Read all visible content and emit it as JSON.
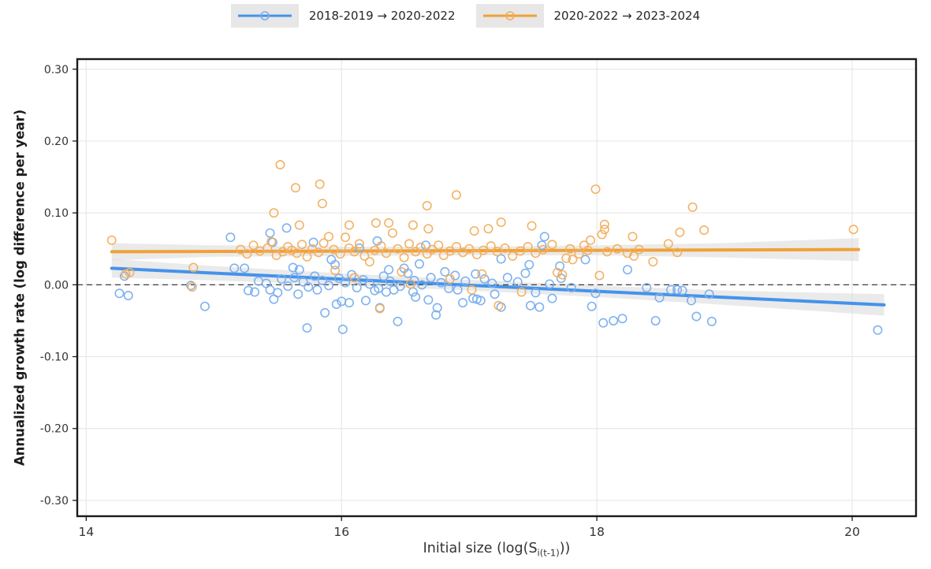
{
  "legend": {
    "items": [
      {
        "label": "2018-2019 → 2020-2022"
      },
      {
        "label": "2020-2022 → 2023-2024"
      }
    ]
  },
  "axes": {
    "y_label": "Annualized growth rate (log difference per year)",
    "x_label_pre": "Initial size (log(S",
    "x_label_sub": "i(t-1)",
    "x_label_post": "))"
  },
  "chart_data": {
    "type": "scatter",
    "title": "",
    "xlabel": "Initial size (log(S_i(t-1)))",
    "ylabel": "Annualized growth rate (log difference per year)",
    "xlim": [
      13.93,
      20.5
    ],
    "ylim": [
      -0.322,
      0.314
    ],
    "grid": true,
    "legend_position": "top-center",
    "x_ticks": {
      "values": [
        14,
        16,
        18,
        20
      ],
      "labels": [
        "14",
        "16",
        "18",
        "20"
      ]
    },
    "y_ticks": {
      "values": [
        0.3,
        0.2,
        0.1,
        0.0,
        -0.1,
        -0.2,
        -0.3
      ],
      "labels": [
        "0.30",
        "0.20",
        "0.10",
        "0.00",
        "-0.10",
        "-0.20",
        "-0.30"
      ]
    },
    "zero_line": {
      "y": 0,
      "style": "dashed",
      "color": "#3c3c3c"
    },
    "colors": {
      "ribbon": "#dcdcdc",
      "grid": "#e8e8e8",
      "spine": "#1b1b1b",
      "tick_text": "#333333"
    },
    "series": [
      {
        "name": "2018-2019 → 2020-2022",
        "line_color": "#4493EA",
        "marker_color": "#78AEEF",
        "trend": [
          [
            14.2,
            0.023
          ],
          [
            20.25,
            -0.028
          ]
        ],
        "ci_band": [
          [
            14.2,
            0.01,
            0.036
          ],
          [
            15.0,
            0.006,
            0.026
          ],
          [
            16.0,
            0.0,
            0.016
          ],
          [
            17.0,
            -0.008,
            0.007
          ],
          [
            18.0,
            -0.017,
            -0.001
          ],
          [
            19.0,
            -0.028,
            -0.008
          ],
          [
            20.25,
            -0.043,
            -0.013
          ]
        ],
        "points": [
          [
            14.26,
            -0.012
          ],
          [
            14.3,
            0.012
          ],
          [
            14.33,
            -0.015
          ],
          [
            14.82,
            -0.001
          ],
          [
            14.93,
            -0.03
          ],
          [
            15.13,
            0.066
          ],
          [
            15.16,
            0.023
          ],
          [
            15.24,
            0.023
          ],
          [
            15.27,
            -0.008
          ],
          [
            15.32,
            -0.01
          ],
          [
            15.35,
            0.005
          ],
          [
            15.41,
            0.002
          ],
          [
            15.44,
            -0.007
          ],
          [
            15.44,
            0.072
          ],
          [
            15.46,
            0.059
          ],
          [
            15.47,
            -0.02
          ],
          [
            15.5,
            -0.011
          ],
          [
            15.53,
            0.008
          ],
          [
            15.57,
            0.079
          ],
          [
            15.58,
            -0.002
          ],
          [
            15.62,
            0.024
          ],
          [
            15.63,
            0.01
          ],
          [
            15.66,
            -0.013
          ],
          [
            15.67,
            0.021
          ],
          [
            15.7,
            0.004
          ],
          [
            15.73,
            -0.06
          ],
          [
            15.74,
            -0.003
          ],
          [
            15.78,
            0.059
          ],
          [
            15.79,
            0.012
          ],
          [
            15.81,
            -0.007
          ],
          [
            15.85,
            0.006
          ],
          [
            15.87,
            -0.039
          ],
          [
            15.9,
            -0.001
          ],
          [
            15.92,
            0.035
          ],
          [
            15.95,
            0.028
          ],
          [
            15.96,
            -0.027
          ],
          [
            15.98,
            0.009
          ],
          [
            16.0,
            -0.023
          ],
          [
            16.01,
            -0.062
          ],
          [
            16.03,
            0.003
          ],
          [
            16.06,
            -0.025
          ],
          [
            16.08,
            0.014
          ],
          [
            16.12,
            -0.004
          ],
          [
            16.14,
            0.051
          ],
          [
            16.17,
            0.007
          ],
          [
            16.19,
            -0.022
          ],
          [
            16.22,
            0.001
          ],
          [
            16.26,
            -0.008
          ],
          [
            16.28,
            0.061
          ],
          [
            16.29,
            -0.005
          ],
          [
            16.3,
            -0.032
          ],
          [
            16.33,
            0.012
          ],
          [
            16.35,
            -0.01
          ],
          [
            16.37,
            0.021
          ],
          [
            16.38,
            0.005
          ],
          [
            16.41,
            -0.007
          ],
          [
            16.44,
            -0.051
          ],
          [
            16.46,
            -0.002
          ],
          [
            16.49,
            0.023
          ],
          [
            16.52,
            0.016
          ],
          [
            16.56,
            -0.01
          ],
          [
            16.57,
            0.006
          ],
          [
            16.58,
            -0.017
          ],
          [
            16.61,
            0.029
          ],
          [
            16.63,
            0.0
          ],
          [
            16.66,
            0.055
          ],
          [
            16.68,
            -0.021
          ],
          [
            16.7,
            0.01
          ],
          [
            16.74,
            -0.042
          ],
          [
            16.75,
            -0.032
          ],
          [
            16.78,
            0.003
          ],
          [
            16.81,
            0.018
          ],
          [
            16.84,
            -0.005
          ],
          [
            16.89,
            0.013
          ],
          [
            16.91,
            -0.007
          ],
          [
            16.95,
            -0.025
          ],
          [
            16.97,
            0.005
          ],
          [
            17.03,
            -0.019
          ],
          [
            17.05,
            0.015
          ],
          [
            17.06,
            -0.02
          ],
          [
            17.09,
            -0.022
          ],
          [
            17.12,
            0.008
          ],
          [
            17.18,
            0.002
          ],
          [
            17.2,
            -0.013
          ],
          [
            17.25,
            -0.031
          ],
          [
            17.25,
            0.036
          ],
          [
            17.3,
            0.01
          ],
          [
            17.38,
            0.004
          ],
          [
            17.44,
            0.016
          ],
          [
            17.47,
            0.028
          ],
          [
            17.48,
            -0.029
          ],
          [
            17.52,
            -0.011
          ],
          [
            17.55,
            -0.031
          ],
          [
            17.57,
            0.055
          ],
          [
            17.59,
            0.067
          ],
          [
            17.63,
            0.001
          ],
          [
            17.65,
            -0.019
          ],
          [
            17.71,
            0.026
          ],
          [
            17.72,
            0.009
          ],
          [
            17.8,
            -0.004
          ],
          [
            17.91,
            0.035
          ],
          [
            17.96,
            -0.03
          ],
          [
            17.99,
            -0.012
          ],
          [
            18.05,
            -0.053
          ],
          [
            18.13,
            -0.05
          ],
          [
            18.2,
            -0.047
          ],
          [
            18.24,
            0.021
          ],
          [
            18.39,
            -0.004
          ],
          [
            18.46,
            -0.05
          ],
          [
            18.49,
            -0.018
          ],
          [
            18.58,
            -0.007
          ],
          [
            18.63,
            -0.007
          ],
          [
            18.67,
            -0.008
          ],
          [
            18.74,
            -0.022
          ],
          [
            18.78,
            -0.044
          ],
          [
            18.88,
            -0.013
          ],
          [
            18.9,
            -0.051
          ],
          [
            20.2,
            -0.063
          ]
        ]
      },
      {
        "name": "2020-2022 → 2023-2024",
        "line_color": "#F0A136",
        "marker_color": "#F3AE5C",
        "trend": [
          [
            14.2,
            0.046
          ],
          [
            20.05,
            0.049
          ]
        ],
        "ci_band": [
          [
            14.2,
            0.034,
            0.058
          ],
          [
            15.0,
            0.039,
            0.055
          ],
          [
            16.0,
            0.04,
            0.053
          ],
          [
            17.0,
            0.041,
            0.053
          ],
          [
            18.0,
            0.041,
            0.055
          ],
          [
            19.0,
            0.038,
            0.058
          ],
          [
            20.05,
            0.033,
            0.065
          ]
        ],
        "points": [
          [
            14.2,
            0.062
          ],
          [
            14.31,
            0.015
          ],
          [
            14.34,
            0.017
          ],
          [
            14.83,
            -0.003
          ],
          [
            14.84,
            0.024
          ],
          [
            15.21,
            0.049
          ],
          [
            15.26,
            0.043
          ],
          [
            15.31,
            0.055
          ],
          [
            15.36,
            0.047
          ],
          [
            15.42,
            0.051
          ],
          [
            15.45,
            0.06
          ],
          [
            15.47,
            0.1
          ],
          [
            15.49,
            0.041
          ],
          [
            15.52,
            0.167
          ],
          [
            15.54,
            0.046
          ],
          [
            15.58,
            0.053
          ],
          [
            15.61,
            0.048
          ],
          [
            15.64,
            0.135
          ],
          [
            15.65,
            0.044
          ],
          [
            15.67,
            0.083
          ],
          [
            15.69,
            0.056
          ],
          [
            15.73,
            0.039
          ],
          [
            15.77,
            0.05
          ],
          [
            15.82,
            0.045
          ],
          [
            15.83,
            0.14
          ],
          [
            15.85,
            0.113
          ],
          [
            15.86,
            0.058
          ],
          [
            15.9,
            0.067
          ],
          [
            15.94,
            0.049
          ],
          [
            15.95,
            0.02
          ],
          [
            15.99,
            0.043
          ],
          [
            16.03,
            0.066
          ],
          [
            16.06,
            0.083
          ],
          [
            16.06,
            0.051
          ],
          [
            16.1,
            0.046
          ],
          [
            16.1,
            0.01
          ],
          [
            16.14,
            0.057
          ],
          [
            16.18,
            0.04
          ],
          [
            16.22,
            0.032
          ],
          [
            16.26,
            0.048
          ],
          [
            16.27,
            0.086
          ],
          [
            16.3,
            -0.033
          ],
          [
            16.31,
            0.054
          ],
          [
            16.35,
            0.044
          ],
          [
            16.37,
            0.086
          ],
          [
            16.4,
            0.072
          ],
          [
            16.44,
            0.05
          ],
          [
            16.47,
            0.018
          ],
          [
            16.49,
            0.038
          ],
          [
            16.53,
            0.057
          ],
          [
            16.54,
            0.001
          ],
          [
            16.56,
            0.083
          ],
          [
            16.58,
            0.046
          ],
          [
            16.62,
            0.052
          ],
          [
            16.67,
            0.11
          ],
          [
            16.67,
            0.043
          ],
          [
            16.68,
            0.078
          ],
          [
            16.71,
            0.049
          ],
          [
            16.76,
            0.055
          ],
          [
            16.8,
            0.041
          ],
          [
            16.85,
            0.047
          ],
          [
            16.85,
            0.008
          ],
          [
            16.9,
            0.125
          ],
          [
            16.9,
            0.053
          ],
          [
            16.95,
            0.045
          ],
          [
            17.0,
            0.05
          ],
          [
            17.02,
            -0.007
          ],
          [
            17.04,
            0.075
          ],
          [
            17.06,
            0.042
          ],
          [
            17.1,
            0.015
          ],
          [
            17.11,
            0.048
          ],
          [
            17.15,
            0.078
          ],
          [
            17.17,
            0.054
          ],
          [
            17.22,
            0.046
          ],
          [
            17.23,
            -0.029
          ],
          [
            17.25,
            0.087
          ],
          [
            17.28,
            0.051
          ],
          [
            17.34,
            0.04
          ],
          [
            17.4,
            0.047
          ],
          [
            17.41,
            -0.01
          ],
          [
            17.46,
            0.053
          ],
          [
            17.49,
            0.082
          ],
          [
            17.52,
            0.044
          ],
          [
            17.58,
            0.049
          ],
          [
            17.65,
            0.056
          ],
          [
            17.69,
            0.017
          ],
          [
            17.73,
            0.014
          ],
          [
            17.76,
            0.037
          ],
          [
            17.79,
            0.05
          ],
          [
            17.81,
            0.035
          ],
          [
            17.86,
            0.043
          ],
          [
            17.9,
            0.055
          ],
          [
            17.93,
            0.048
          ],
          [
            17.95,
            0.062
          ],
          [
            17.99,
            0.133
          ],
          [
            18.02,
            0.013
          ],
          [
            18.04,
            0.07
          ],
          [
            18.06,
            0.084
          ],
          [
            18.06,
            0.077
          ],
          [
            18.08,
            0.046
          ],
          [
            18.16,
            0.05
          ],
          [
            18.24,
            0.044
          ],
          [
            18.28,
            0.067
          ],
          [
            18.29,
            0.04
          ],
          [
            18.33,
            0.049
          ],
          [
            18.44,
            0.032
          ],
          [
            18.56,
            0.057
          ],
          [
            18.63,
            0.045
          ],
          [
            18.65,
            0.073
          ],
          [
            18.75,
            0.108
          ],
          [
            18.84,
            0.076
          ],
          [
            20.01,
            0.077
          ]
        ]
      }
    ]
  }
}
